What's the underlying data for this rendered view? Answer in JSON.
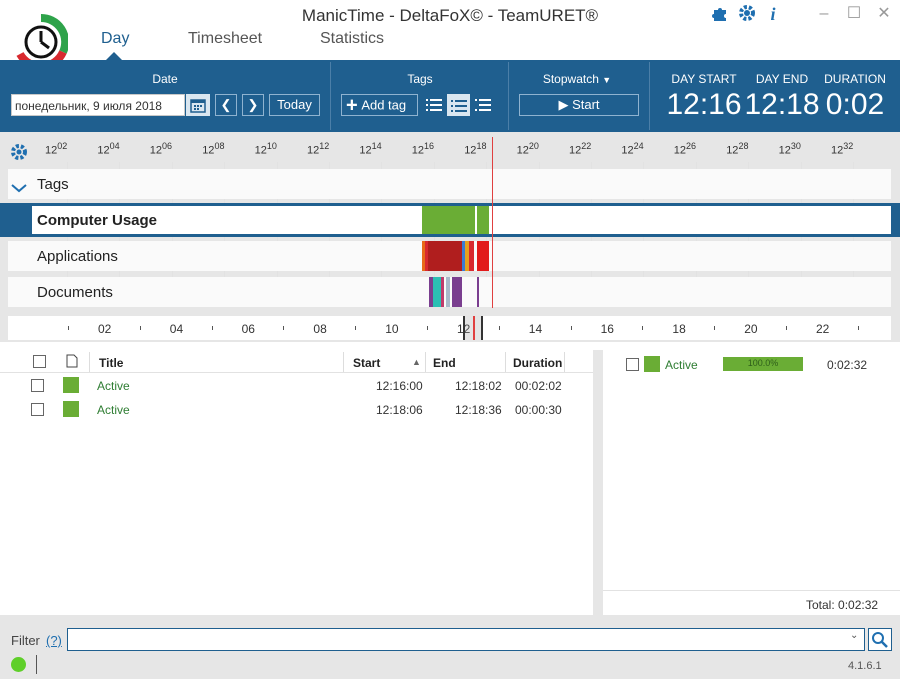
{
  "window": {
    "title": "ManicTime - DeltaFoX© - TeamURET®"
  },
  "tabs": [
    {
      "label": "Day"
    },
    {
      "label": "Timesheet"
    },
    {
      "label": "Statistics"
    }
  ],
  "ribbon": {
    "date_label": "Date",
    "date_value": "понедельник, 9 июля 2018",
    "today_label": "Today",
    "tags_label": "Tags",
    "add_tag_label": "Add tag",
    "stopwatch_label": "Stopwatch",
    "start_label": "Start",
    "day_start_label": "DAY START",
    "day_start_value": "12:16",
    "day_end_label": "DAY END",
    "day_end_value": "12:18",
    "duration_label": "DURATION",
    "duration_value": "0:02"
  },
  "timeline": {
    "ticks": [
      {
        "h": "12",
        "m": "02"
      },
      {
        "h": "12",
        "m": "04"
      },
      {
        "h": "12",
        "m": "06"
      },
      {
        "h": "12",
        "m": "08"
      },
      {
        "h": "12",
        "m": "10"
      },
      {
        "h": "12",
        "m": "12"
      },
      {
        "h": "12",
        "m": "14"
      },
      {
        "h": "12",
        "m": "16"
      },
      {
        "h": "12",
        "m": "18"
      },
      {
        "h": "12",
        "m": "20"
      },
      {
        "h": "12",
        "m": "22"
      },
      {
        "h": "12",
        "m": "24"
      },
      {
        "h": "12",
        "m": "26"
      },
      {
        "h": "12",
        "m": "28"
      },
      {
        "h": "12",
        "m": "30"
      },
      {
        "h": "12",
        "m": "32"
      }
    ],
    "rows": [
      {
        "label": "Tags"
      },
      {
        "label": "Computer Usage"
      },
      {
        "label": "Applications"
      },
      {
        "label": "Documents"
      }
    ],
    "scrub_labels": [
      "02",
      "04",
      "06",
      "08",
      "10",
      "12",
      "14",
      "16",
      "18",
      "20",
      "22"
    ]
  },
  "grid": {
    "headers": {
      "title": "Title",
      "start": "Start",
      "end": "End",
      "duration": "Duration"
    },
    "rows": [
      {
        "title": "Active",
        "start": "12:16:00",
        "end": "12:18:02",
        "duration": "00:02:02",
        "color": "#6aad35"
      },
      {
        "title": "Active",
        "start": "12:18:06",
        "end": "12:18:36",
        "duration": "00:00:30",
        "color": "#6aad35"
      }
    ]
  },
  "summary": {
    "rows": [
      {
        "title": "Active",
        "percent_label": "100.0%",
        "percent": 100,
        "duration": "0:02:32",
        "color": "#6aad35"
      }
    ],
    "total": "Total: 0:02:32"
  },
  "footer": {
    "filter_label": "Filter",
    "filter_help": "(?)",
    "version": "4.1.6.1"
  },
  "colors": {
    "accent": "#1f5f8f",
    "active": "#6aad35",
    "now_line": "#e04040"
  }
}
